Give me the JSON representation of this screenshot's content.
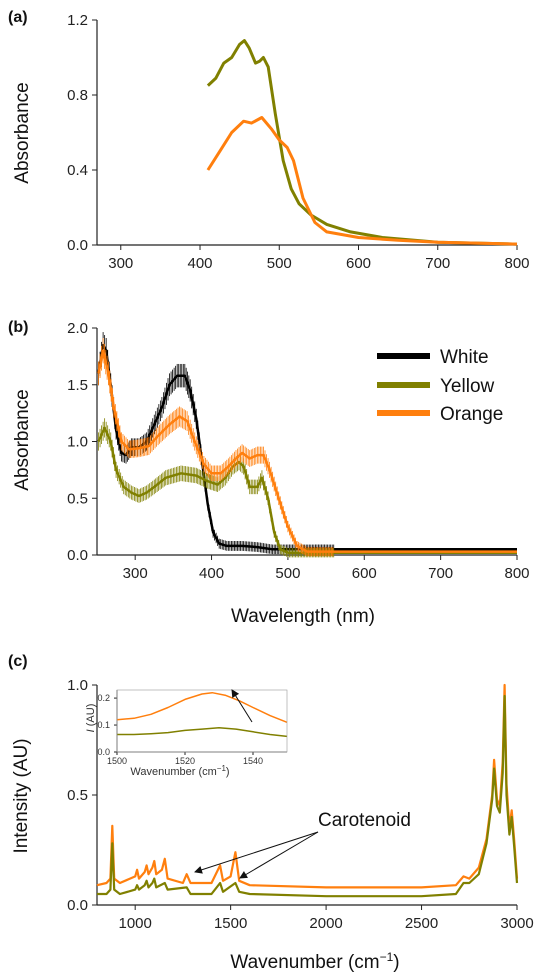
{
  "colors": {
    "white": "#000000",
    "yellow": "#808000",
    "orange": "#ff7f0e",
    "axis": "#222222"
  },
  "chart_data": [
    {
      "panel": "(a)",
      "type": "line",
      "ylabel": "Absorbance",
      "xlabel": "",
      "xlim": [
        270,
        800
      ],
      "ylim": [
        0,
        1.2
      ],
      "xticks": [
        "300",
        "400",
        "500",
        "600",
        "700",
        "800"
      ],
      "yticks": [
        "0.0",
        "0.4",
        "0.8",
        "1.2"
      ],
      "series": [
        {
          "color": "#808000",
          "points": [
            [
              410,
              0.85
            ],
            [
              420,
              0.89
            ],
            [
              430,
              0.97
            ],
            [
              440,
              1.0
            ],
            [
              450,
              1.07
            ],
            [
              456,
              1.09
            ],
            [
              462,
              1.05
            ],
            [
              470,
              0.97
            ],
            [
              475,
              0.98
            ],
            [
              480,
              1.0
            ],
            [
              486,
              0.95
            ],
            [
              495,
              0.7
            ],
            [
              505,
              0.45
            ],
            [
              515,
              0.3
            ],
            [
              525,
              0.22
            ],
            [
              540,
              0.16
            ],
            [
              560,
              0.11
            ],
            [
              590,
              0.07
            ],
            [
              630,
              0.04
            ],
            [
              700,
              0.015
            ],
            [
              800,
              0.005
            ]
          ]
        },
        {
          "color": "#ff7f0e",
          "points": [
            [
              410,
              0.4
            ],
            [
              425,
              0.5
            ],
            [
              440,
              0.6
            ],
            [
              455,
              0.66
            ],
            [
              465,
              0.65
            ],
            [
              478,
              0.68
            ],
            [
              490,
              0.62
            ],
            [
              500,
              0.56
            ],
            [
              510,
              0.52
            ],
            [
              518,
              0.45
            ],
            [
              530,
              0.25
            ],
            [
              545,
              0.12
            ],
            [
              560,
              0.07
            ],
            [
              600,
              0.04
            ],
            [
              650,
              0.025
            ],
            [
              700,
              0.015
            ],
            [
              800,
              0.005
            ]
          ]
        }
      ]
    },
    {
      "panel": "(b)",
      "type": "line",
      "ylabel": "Absorbance",
      "xlabel": "Wavelength (nm)",
      "xlim": [
        250,
        800
      ],
      "ylim": [
        0,
        2.0
      ],
      "xticks": [
        "300",
        "400",
        "500",
        "600",
        "700",
        "800"
      ],
      "yticks": [
        "0.0",
        "0.5",
        "1.0",
        "1.5",
        "2.0"
      ],
      "legend_position": "top-right",
      "series": [
        {
          "name": "White",
          "color": "#000000",
          "points": [
            [
              252,
              1.6
            ],
            [
              258,
              1.85
            ],
            [
              262,
              1.8
            ],
            [
              268,
              1.5
            ],
            [
              275,
              1.1
            ],
            [
              282,
              0.9
            ],
            [
              288,
              0.88
            ],
            [
              295,
              0.95
            ],
            [
              305,
              0.95
            ],
            [
              315,
              1.0
            ],
            [
              325,
              1.15
            ],
            [
              335,
              1.3
            ],
            [
              345,
              1.5
            ],
            [
              355,
              1.58
            ],
            [
              365,
              1.58
            ],
            [
              372,
              1.45
            ],
            [
              380,
              1.2
            ],
            [
              388,
              0.8
            ],
            [
              395,
              0.45
            ],
            [
              402,
              0.2
            ],
            [
              410,
              0.1
            ],
            [
              420,
              0.08
            ],
            [
              440,
              0.08
            ],
            [
              460,
              0.07
            ],
            [
              480,
              0.05
            ],
            [
              500,
              0.05
            ],
            [
              800,
              0.05
            ]
          ]
        },
        {
          "name": "Yellow",
          "color": "#808000",
          "points": [
            [
              252,
              1.0
            ],
            [
              260,
              1.12
            ],
            [
              268,
              1.0
            ],
            [
              275,
              0.75
            ],
            [
              285,
              0.6
            ],
            [
              295,
              0.55
            ],
            [
              305,
              0.52
            ],
            [
              315,
              0.55
            ],
            [
              325,
              0.6
            ],
            [
              340,
              0.68
            ],
            [
              360,
              0.72
            ],
            [
              380,
              0.7
            ],
            [
              395,
              0.65
            ],
            [
              408,
              0.62
            ],
            [
              418,
              0.68
            ],
            [
              428,
              0.78
            ],
            [
              436,
              0.82
            ],
            [
              442,
              0.78
            ],
            [
              450,
              0.6
            ],
            [
              460,
              0.6
            ],
            [
              466,
              0.68
            ],
            [
              474,
              0.5
            ],
            [
              482,
              0.2
            ],
            [
              490,
              0.05
            ],
            [
              500,
              0.02
            ],
            [
              520,
              0.02
            ],
            [
              800,
              0.02
            ]
          ]
        },
        {
          "name": "Orange",
          "color": "#ff7f0e",
          "points": [
            [
              252,
              1.6
            ],
            [
              258,
              1.8
            ],
            [
              265,
              1.6
            ],
            [
              272,
              1.3
            ],
            [
              282,
              1.0
            ],
            [
              292,
              0.93
            ],
            [
              305,
              0.94
            ],
            [
              318,
              0.96
            ],
            [
              330,
              1.05
            ],
            [
              345,
              1.15
            ],
            [
              358,
              1.22
            ],
            [
              368,
              1.18
            ],
            [
              378,
              1.0
            ],
            [
              390,
              0.8
            ],
            [
              400,
              0.72
            ],
            [
              412,
              0.72
            ],
            [
              422,
              0.78
            ],
            [
              432,
              0.85
            ],
            [
              440,
              0.9
            ],
            [
              450,
              0.85
            ],
            [
              460,
              0.88
            ],
            [
              468,
              0.88
            ],
            [
              476,
              0.75
            ],
            [
              488,
              0.5
            ],
            [
              500,
              0.25
            ],
            [
              512,
              0.08
            ],
            [
              525,
              0.03
            ],
            [
              800,
              0.03
            ]
          ]
        }
      ]
    },
    {
      "panel": "(c)",
      "type": "line",
      "ylabel": "Intensity (AU)",
      "xlabel": "Wavenumber (cm",
      "xlabel_sup": "−1",
      "xlabel_close": ")",
      "xlim": [
        800,
        3000
      ],
      "ylim": [
        0,
        1.0
      ],
      "xticks": [
        "1000",
        "1500",
        "2000",
        "2500",
        "3000"
      ],
      "yticks": [
        "0.0",
        "0.5",
        "1.0"
      ],
      "annotation": "Carotenoid",
      "series": [
        {
          "color": "#ff7f0e",
          "points": [
            [
              800,
              0.09
            ],
            [
              850,
              0.1
            ],
            [
              870,
              0.12
            ],
            [
              880,
              0.36
            ],
            [
              890,
              0.12
            ],
            [
              920,
              0.1
            ],
            [
              1000,
              0.13
            ],
            [
              1010,
              0.16
            ],
            [
              1020,
              0.12
            ],
            [
              1050,
              0.15
            ],
            [
              1060,
              0.18
            ],
            [
              1070,
              0.14
            ],
            [
              1090,
              0.17
            ],
            [
              1100,
              0.2
            ],
            [
              1110,
              0.14
            ],
            [
              1140,
              0.16
            ],
            [
              1155,
              0.21
            ],
            [
              1170,
              0.12
            ],
            [
              1250,
              0.1
            ],
            [
              1270,
              0.14
            ],
            [
              1290,
              0.1
            ],
            [
              1400,
              0.1
            ],
            [
              1445,
              0.18
            ],
            [
              1460,
              0.11
            ],
            [
              1500,
              0.13
            ],
            [
              1525,
              0.24
            ],
            [
              1545,
              0.11
            ],
            [
              1600,
              0.09
            ],
            [
              2000,
              0.08
            ],
            [
              2500,
              0.08
            ],
            [
              2680,
              0.09
            ],
            [
              2720,
              0.13
            ],
            [
              2750,
              0.12
            ],
            [
              2800,
              0.17
            ],
            [
              2840,
              0.3
            ],
            [
              2870,
              0.5
            ],
            [
              2880,
              0.66
            ],
            [
              2895,
              0.48
            ],
            [
              2910,
              0.45
            ],
            [
              2925,
              0.65
            ],
            [
              2935,
              1.0
            ],
            [
              2945,
              0.55
            ],
            [
              2960,
              0.35
            ],
            [
              2972,
              0.43
            ],
            [
              2985,
              0.3
            ],
            [
              3000,
              0.12
            ]
          ]
        },
        {
          "color": "#808000",
          "points": [
            [
              800,
              0.05
            ],
            [
              850,
              0.05
            ],
            [
              870,
              0.07
            ],
            [
              880,
              0.28
            ],
            [
              890,
              0.07
            ],
            [
              920,
              0.05
            ],
            [
              1000,
              0.07
            ],
            [
              1010,
              0.09
            ],
            [
              1020,
              0.07
            ],
            [
              1050,
              0.09
            ],
            [
              1060,
              0.11
            ],
            [
              1070,
              0.08
            ],
            [
              1090,
              0.1
            ],
            [
              1100,
              0.12
            ],
            [
              1110,
              0.08
            ],
            [
              1155,
              0.1
            ],
            [
              1170,
              0.07
            ],
            [
              1270,
              0.08
            ],
            [
              1290,
              0.05
            ],
            [
              1400,
              0.05
            ],
            [
              1445,
              0.1
            ],
            [
              1460,
              0.06
            ],
            [
              1525,
              0.1
            ],
            [
              1545,
              0.06
            ],
            [
              1600,
              0.05
            ],
            [
              2000,
              0.04
            ],
            [
              2500,
              0.04
            ],
            [
              2680,
              0.05
            ],
            [
              2720,
              0.1
            ],
            [
              2750,
              0.1
            ],
            [
              2800,
              0.14
            ],
            [
              2840,
              0.28
            ],
            [
              2870,
              0.48
            ],
            [
              2880,
              0.62
            ],
            [
              2895,
              0.45
            ],
            [
              2910,
              0.42
            ],
            [
              2925,
              0.6
            ],
            [
              2935,
              0.95
            ],
            [
              2945,
              0.5
            ],
            [
              2960,
              0.32
            ],
            [
              2972,
              0.4
            ],
            [
              2985,
              0.27
            ],
            [
              3000,
              0.1
            ]
          ]
        }
      ],
      "inset": {
        "ylabel_italic": "I",
        "ylabel_rest": " (AU)",
        "xlabel": "Wavenumber (cm",
        "xlabel_sup": "−1",
        "xlabel_close": ")",
        "xlim": [
          1500,
          1550
        ],
        "ylim": [
          0,
          0.23
        ],
        "xticks": [
          "1500",
          "1520",
          "1540"
        ],
        "yticks": [
          "0.0",
          "0.1",
          "0.2"
        ],
        "series": [
          {
            "color": "#ff7f0e",
            "points": [
              [
                1500,
                0.12
              ],
              [
                1505,
                0.125
              ],
              [
                1510,
                0.14
              ],
              [
                1515,
                0.165
              ],
              [
                1520,
                0.195
              ],
              [
                1525,
                0.215
              ],
              [
                1528,
                0.22
              ],
              [
                1532,
                0.21
              ],
              [
                1536,
                0.19
              ],
              [
                1540,
                0.165
              ],
              [
                1545,
                0.135
              ],
              [
                1550,
                0.11
              ]
            ]
          },
          {
            "color": "#808000",
            "points": [
              [
                1500,
                0.065
              ],
              [
                1505,
                0.065
              ],
              [
                1510,
                0.068
              ],
              [
                1515,
                0.072
              ],
              [
                1520,
                0.08
              ],
              [
                1525,
                0.085
              ],
              [
                1530,
                0.09
              ],
              [
                1535,
                0.085
              ],
              [
                1540,
                0.075
              ],
              [
                1545,
                0.065
              ],
              [
                1550,
                0.058
              ]
            ]
          }
        ]
      }
    }
  ]
}
